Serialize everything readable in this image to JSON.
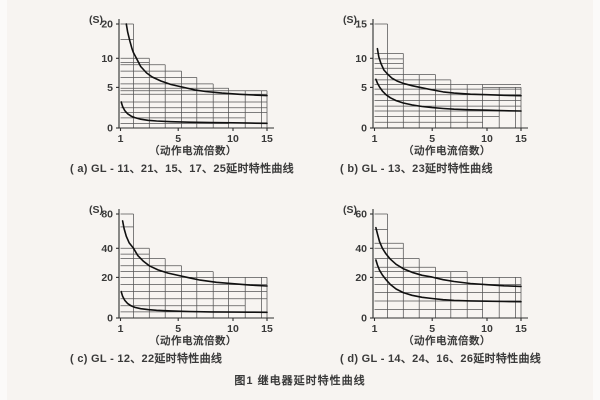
{
  "figure": {
    "caption": "图1 继电器延时特性曲线"
  },
  "theme": {
    "background": "#f7f4f1",
    "grid_color": "#555555",
    "axis_color": "#2f2f2f",
    "curve_color": "#101010",
    "text_color": "#3a3a3a"
  },
  "chart_data": [
    {
      "id": "a",
      "type": "line",
      "title": "( a) GL - 11、21、15、17、25延时特性曲线",
      "xlabel": "（动作电流倍数）",
      "ylabel": "(S)",
      "x_ticks": [
        1,
        5,
        10,
        15
      ],
      "y_ticks": [
        0,
        5,
        10,
        20
      ],
      "xlim": [
        1,
        15
      ],
      "ylim": [
        0,
        20
      ],
      "series": [
        {
          "name": "upper-limit-curve",
          "points": [
            [
              1.4,
              20
            ],
            [
              1.5,
              17.6
            ],
            [
              1.65,
              15
            ],
            [
              1.8,
              12.8
            ],
            [
              1.9,
              11.6
            ],
            [
              2.1,
              10
            ],
            [
              2.4,
              8.6
            ],
            [
              2.8,
              7.5
            ],
            [
              3.2,
              6.8
            ],
            [
              3.8,
              6.1
            ],
            [
              4.5,
              5.5
            ],
            [
              5.5,
              5.0
            ],
            [
              6.5,
              4.7
            ],
            [
              7.5,
              4.5
            ],
            [
              9,
              4.3
            ],
            [
              11,
              4.15
            ],
            [
              13,
              4.07
            ],
            [
              15,
              4.0
            ]
          ]
        },
        {
          "name": "lower-limit-curve",
          "points": [
            [
              1.05,
              3.2
            ],
            [
              1.15,
              2.65
            ],
            [
              1.3,
              2.15
            ],
            [
              1.5,
              1.75
            ],
            [
              1.75,
              1.45
            ],
            [
              2,
              1.28
            ],
            [
              2.4,
              1.08
            ],
            [
              2.9,
              0.95
            ],
            [
              3.5,
              0.86
            ],
            [
              4.5,
              0.78
            ],
            [
              6,
              0.72
            ],
            [
              8,
              0.67
            ],
            [
              10,
              0.64
            ],
            [
              12.5,
              0.61
            ],
            [
              15,
              0.58
            ]
          ]
        }
      ],
      "tolerance_band": {
        "h_lines": [
          [
            20,
            1,
            1.9
          ],
          [
            15.5,
            1,
            1.9
          ],
          [
            10,
            1,
            3
          ],
          [
            9.3,
            1,
            3
          ],
          [
            8.9,
            1,
            4.1
          ],
          [
            7.8,
            1,
            5.3
          ],
          [
            6.7,
            1,
            6.7
          ],
          [
            5.6,
            1,
            8.2
          ],
          [
            4.9,
            1,
            9.6
          ],
          [
            4.6,
            1,
            15
          ],
          [
            4.15,
            1,
            15
          ],
          [
            3.2,
            1,
            15
          ],
          [
            2.5,
            1,
            15
          ],
          [
            1.9,
            1,
            15
          ],
          [
            1.25,
            1,
            11.8
          ],
          [
            0.55,
            1,
            9.6
          ]
        ],
        "v_lines": [
          [
            1.9,
            20
          ],
          [
            3,
            10
          ],
          [
            4.1,
            8.9
          ],
          [
            5.3,
            7.8
          ],
          [
            6.7,
            6.7
          ],
          [
            8.2,
            5.6
          ],
          [
            9.6,
            4.9
          ],
          [
            11.8,
            4.6
          ],
          [
            14.2,
            4.6
          ],
          [
            15,
            4.6
          ]
        ]
      }
    },
    {
      "id": "b",
      "type": "line",
      "title": "( b) GL - 13、23延时特性曲线",
      "xlabel": "（动作电流倍数）",
      "ylabel": "(S)",
      "x_ticks": [
        1,
        5,
        10,
        15
      ],
      "y_ticks": [
        0,
        5,
        10,
        15
      ],
      "xlim": [
        1,
        15
      ],
      "ylim": [
        0,
        15
      ],
      "series": [
        {
          "name": "upper-limit-curve",
          "points": [
            [
              1.2,
              11.4
            ],
            [
              1.3,
              10.2
            ],
            [
              1.45,
              9.1
            ],
            [
              1.65,
              8.0
            ],
            [
              1.9,
              7.3
            ],
            [
              2.2,
              6.6
            ],
            [
              2.6,
              6.05
            ],
            [
              3,
              5.7
            ],
            [
              3.6,
              5.3
            ],
            [
              4.3,
              4.95
            ],
            [
              5,
              4.7
            ],
            [
              6,
              4.45
            ],
            [
              7,
              4.3
            ],
            [
              8.5,
              4.17
            ],
            [
              10,
              4.1
            ],
            [
              12.5,
              4.03
            ],
            [
              15,
              3.98
            ]
          ]
        },
        {
          "name": "lower-limit-curve",
          "points": [
            [
              1.1,
              6.4
            ],
            [
              1.2,
              5.75
            ],
            [
              1.35,
              5.1
            ],
            [
              1.55,
              4.55
            ],
            [
              1.8,
              4.1
            ],
            [
              2.1,
              3.72
            ],
            [
              2.5,
              3.38
            ],
            [
              3,
              3.08
            ],
            [
              3.6,
              2.85
            ],
            [
              4.3,
              2.65
            ],
            [
              5,
              2.52
            ],
            [
              6,
              2.4
            ],
            [
              7,
              2.32
            ],
            [
              8.5,
              2.24
            ],
            [
              10,
              2.19
            ],
            [
              12.5,
              2.13
            ],
            [
              15,
              2.1
            ]
          ]
        }
      ],
      "tolerance_band": {
        "h_lines": [
          [
            15,
            1,
            1.9
          ],
          [
            10.7,
            1,
            3
          ],
          [
            9.9,
            1,
            3
          ],
          [
            9.1,
            1,
            3
          ],
          [
            8.3,
            1,
            3
          ],
          [
            7.2,
            1,
            5.3
          ],
          [
            6.3,
            1,
            6.7
          ],
          [
            5.5,
            1,
            15
          ],
          [
            5.0,
            9.6,
            15
          ],
          [
            4.8,
            1,
            15
          ],
          [
            4.1,
            1,
            15
          ],
          [
            3.4,
            1,
            15
          ],
          [
            2.7,
            1,
            15
          ],
          [
            2.1,
            1,
            15
          ],
          [
            1.4,
            1,
            11.8
          ],
          [
            0.7,
            1,
            9.6
          ]
        ],
        "v_lines": [
          [
            1.9,
            15
          ],
          [
            3,
            10.7
          ],
          [
            4.1,
            7.2
          ],
          [
            5.3,
            7.2
          ],
          [
            6.7,
            6.3
          ],
          [
            8.2,
            5.5
          ],
          [
            9.6,
            5.5
          ],
          [
            11.8,
            5.0
          ],
          [
            14.2,
            5.0
          ],
          [
            15,
            5.0
          ]
        ]
      }
    },
    {
      "id": "c",
      "type": "line",
      "title": "( c) GL - 12、22延时特性曲线",
      "xlabel": "（动作电流倍数）",
      "ylabel": "(S)",
      "x_ticks": [
        1,
        5,
        10,
        15
      ],
      "y_ticks": [
        0,
        20,
        40,
        80
      ],
      "xlim": [
        1,
        15
      ],
      "ylim": [
        0,
        80
      ],
      "series": [
        {
          "name": "upper-limit-curve",
          "points": [
            [
              1.15,
              72
            ],
            [
              1.25,
              63
            ],
            [
              1.4,
              54
            ],
            [
              1.6,
              46.5
            ],
            [
              1.9,
              40
            ],
            [
              2.2,
              35
            ],
            [
              2.6,
              31
            ],
            [
              3,
              28
            ],
            [
              3.6,
              25.2
            ],
            [
              4.3,
              23
            ],
            [
              5,
              21.4
            ],
            [
              6,
              19.8
            ],
            [
              7,
              18.7
            ],
            [
              8.5,
              17.6
            ],
            [
              10,
              16.9
            ],
            [
              12.5,
              16.2
            ],
            [
              15,
              15.8
            ]
          ]
        },
        {
          "name": "lower-limit-curve",
          "points": [
            [
              1.05,
              13
            ],
            [
              1.15,
              10.7
            ],
            [
              1.3,
              8.7
            ],
            [
              1.5,
              7.1
            ],
            [
              1.75,
              5.95
            ],
            [
              2,
              5.25
            ],
            [
              2.4,
              4.6
            ],
            [
              2.9,
              4.15
            ],
            [
              3.5,
              3.8
            ],
            [
              4.5,
              3.5
            ],
            [
              6,
              3.2
            ],
            [
              8,
              3.0
            ],
            [
              10,
              2.92
            ],
            [
              12.5,
              2.85
            ],
            [
              15,
              2.8
            ]
          ]
        }
      ],
      "tolerance_band": {
        "h_lines": [
          [
            80,
            1,
            1.9
          ],
          [
            65,
            1,
            1.9
          ],
          [
            40,
            1,
            3
          ],
          [
            36,
            1,
            3
          ],
          [
            33,
            1,
            4.1
          ],
          [
            28,
            1,
            5.3
          ],
          [
            24,
            1,
            8.2
          ],
          [
            20,
            1,
            15
          ],
          [
            16.5,
            1,
            15
          ],
          [
            13,
            1,
            15
          ],
          [
            9.5,
            1,
            15
          ],
          [
            6,
            1,
            11.8
          ],
          [
            3,
            1,
            9.6
          ]
        ],
        "v_lines": [
          [
            1.9,
            80
          ],
          [
            3,
            40
          ],
          [
            4.1,
            33
          ],
          [
            5.3,
            28
          ],
          [
            6.7,
            24
          ],
          [
            8.2,
            24
          ],
          [
            9.6,
            20
          ],
          [
            11.8,
            20
          ],
          [
            14.2,
            20
          ],
          [
            15,
            20
          ]
        ]
      }
    },
    {
      "id": "d",
      "type": "line",
      "title": "( d) GL - 14、24、16、26延时特性曲线",
      "xlabel": "（动作电流倍数）",
      "ylabel": "(S)",
      "x_ticks": [
        1,
        5,
        10,
        15
      ],
      "y_ticks": [
        0,
        20,
        40,
        60
      ],
      "xlim": [
        1,
        15
      ],
      "ylim": [
        0,
        60
      ],
      "series": [
        {
          "name": "upper-limit-curve",
          "points": [
            [
              1.1,
              52
            ],
            [
              1.2,
              48.5
            ],
            [
              1.35,
              44
            ],
            [
              1.55,
              40
            ],
            [
              1.8,
              36.2
            ],
            [
              2.1,
              32.5
            ],
            [
              2.5,
              29
            ],
            [
              3,
              26
            ],
            [
              3.6,
              23.5
            ],
            [
              4.3,
              21.5
            ],
            [
              5,
              20.2
            ],
            [
              6,
              18.9
            ],
            [
              7,
              18
            ],
            [
              8.5,
              17
            ],
            [
              10,
              16.4
            ],
            [
              12.5,
              15.9
            ],
            [
              15,
              15.6
            ]
          ]
        },
        {
          "name": "lower-limit-curve",
          "points": [
            [
              1.1,
              32
            ],
            [
              1.2,
              28.6
            ],
            [
              1.35,
              25
            ],
            [
              1.55,
              21.7
            ],
            [
              1.8,
              18.9
            ],
            [
              2.1,
              16.5
            ],
            [
              2.5,
              14.3
            ],
            [
              3,
              12.5
            ],
            [
              3.6,
              11.2
            ],
            [
              4.3,
              10.2
            ],
            [
              5,
              9.6
            ],
            [
              6,
              9.0
            ],
            [
              7,
              8.7
            ],
            [
              8.5,
              8.45
            ],
            [
              10,
              8.3
            ],
            [
              12.5,
              8.15
            ],
            [
              15,
              8.05
            ]
          ]
        }
      ],
      "tolerance_band": {
        "h_lines": [
          [
            60,
            1,
            1.9
          ],
          [
            51,
            1,
            1.9
          ],
          [
            43,
            1,
            3
          ],
          [
            40,
            1,
            3
          ],
          [
            33,
            1,
            4.1
          ],
          [
            27,
            1,
            5.3
          ],
          [
            24,
            1,
            8.2
          ],
          [
            20,
            1,
            15
          ],
          [
            16.5,
            1,
            15
          ],
          [
            12.5,
            1,
            15
          ],
          [
            8.4,
            1,
            15
          ],
          [
            4.2,
            1,
            9.6
          ]
        ],
        "v_lines": [
          [
            1.9,
            60
          ],
          [
            3,
            43
          ],
          [
            4.1,
            33
          ],
          [
            5.3,
            27
          ],
          [
            6.7,
            24
          ],
          [
            8.2,
            24
          ],
          [
            9.6,
            20
          ],
          [
            11.8,
            20
          ],
          [
            14.2,
            20
          ],
          [
            15,
            20
          ]
        ]
      }
    }
  ]
}
